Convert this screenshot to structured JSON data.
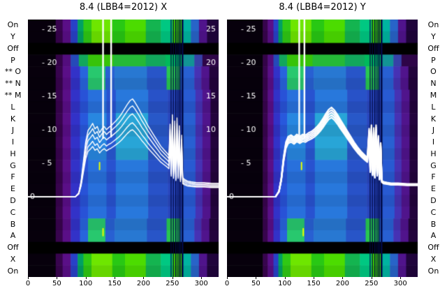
{
  "colors": {
    "trace": "#ffffff",
    "marker": "#e8ff00",
    "text": "#000000",
    "background": "#ffffff"
  },
  "labels": {
    "left": [
      {
        "text": "On"
      },
      {
        "text": "Y"
      },
      {
        "text": "Off"
      },
      {
        "text": "P"
      },
      {
        "text": "O",
        "flag": "**"
      },
      {
        "text": "N",
        "flag": "**"
      },
      {
        "text": "M",
        "flag": "**"
      },
      {
        "text": "L"
      },
      {
        "text": "K"
      },
      {
        "text": "J"
      },
      {
        "text": "I"
      },
      {
        "text": "H"
      },
      {
        "text": "G"
      },
      {
        "text": "F"
      },
      {
        "text": "E"
      },
      {
        "text": "D"
      },
      {
        "text": "C"
      },
      {
        "text": "B"
      },
      {
        "text": "A"
      },
      {
        "text": "Off"
      },
      {
        "text": "X"
      },
      {
        "text": "On"
      }
    ],
    "right": [
      "On",
      "Y",
      "Off",
      "P",
      "O",
      "N",
      "M",
      "L",
      "K",
      "J",
      "I",
      "H",
      "G",
      "F",
      "E",
      "D",
      "C",
      "B",
      "A",
      "Off",
      "X",
      "On"
    ]
  },
  "heatmap_palette": {
    "stripe_color": "#000a46",
    "row_shade_alpha": 0.07,
    "stripes": [
      {
        "x": 247,
        "w": 1.2
      },
      {
        "x": 251,
        "w": 1.2
      },
      {
        "x": 255,
        "w": 1.8
      },
      {
        "x": 259,
        "w": 1.2
      },
      {
        "x": 262,
        "w": 2.2
      },
      {
        "x": 266,
        "w": 3
      }
    ],
    "profiles": {
      "off": [
        [
          0,
          330,
          "#000000"
        ]
      ],
      "bright": [
        [
          0,
          48,
          "#07000c"
        ],
        [
          48,
          60,
          "#38044e"
        ],
        [
          60,
          74,
          "#5a0f87"
        ],
        [
          74,
          86,
          "#2841c8"
        ],
        [
          86,
          96,
          "#00a064"
        ],
        [
          96,
          110,
          "#30c814"
        ],
        [
          110,
          146,
          "#6ee600"
        ],
        [
          146,
          168,
          "#28c814"
        ],
        [
          168,
          204,
          "#4cdc00"
        ],
        [
          204,
          230,
          "#14b450"
        ],
        [
          230,
          250,
          "#00c882"
        ],
        [
          250,
          266,
          "#3cd200"
        ],
        [
          266,
          282,
          "#00b4a0"
        ],
        [
          282,
          296,
          "#2864c8"
        ],
        [
          296,
          310,
          "#50148c"
        ],
        [
          310,
          330,
          "#20043c"
        ]
      ],
      "pgreen": [
        [
          0,
          48,
          "#07000c"
        ],
        [
          48,
          60,
          "#38044e"
        ],
        [
          60,
          74,
          "#5a0f87"
        ],
        [
          74,
          88,
          "#2850c8"
        ],
        [
          88,
          104,
          "#14b464"
        ],
        [
          104,
          148,
          "#3cd20a"
        ],
        [
          148,
          204,
          "#28c83c"
        ],
        [
          204,
          238,
          "#14b464"
        ],
        [
          238,
          266,
          "#00c864"
        ],
        [
          266,
          288,
          "#14a0a0"
        ],
        [
          288,
          302,
          "#3c46b4"
        ],
        [
          302,
          330,
          "#32064e"
        ]
      ],
      "green": [
        [
          0,
          48,
          "#07000c"
        ],
        [
          48,
          60,
          "#38044e"
        ],
        [
          60,
          74,
          "#5a0f87"
        ],
        [
          74,
          90,
          "#3232c8"
        ],
        [
          90,
          104,
          "#2864dc"
        ],
        [
          104,
          134,
          "#28c86e"
        ],
        [
          134,
          150,
          "#2860d2"
        ],
        [
          150,
          206,
          "#2878d2"
        ],
        [
          206,
          240,
          "#2855c8"
        ],
        [
          240,
          264,
          "#28c850"
        ],
        [
          264,
          288,
          "#2860d2"
        ],
        [
          288,
          300,
          "#4632b4"
        ],
        [
          300,
          314,
          "#50148c"
        ],
        [
          314,
          330,
          "#23043c"
        ]
      ],
      "midc": [
        [
          0,
          48,
          "#07000c"
        ],
        [
          48,
          60,
          "#38044e"
        ],
        [
          60,
          74,
          "#5a0f87"
        ],
        [
          74,
          90,
          "#3232c8"
        ],
        [
          90,
          104,
          "#2858dc"
        ],
        [
          104,
          136,
          "#2887e0"
        ],
        [
          136,
          152,
          "#2858d2"
        ],
        [
          152,
          208,
          "#28a5d7"
        ],
        [
          208,
          242,
          "#2858c8"
        ],
        [
          242,
          266,
          "#2846be"
        ],
        [
          266,
          290,
          "#2860d2"
        ],
        [
          290,
          302,
          "#4632b4"
        ],
        [
          302,
          316,
          "#50148c"
        ],
        [
          316,
          330,
          "#23043c"
        ]
      ],
      "mid": [
        [
          0,
          48,
          "#07000c"
        ],
        [
          48,
          60,
          "#38044e"
        ],
        [
          60,
          74,
          "#5a0f87"
        ],
        [
          74,
          90,
          "#3232c8"
        ],
        [
          90,
          104,
          "#2852d7"
        ],
        [
          104,
          136,
          "#2870dc"
        ],
        [
          136,
          152,
          "#2852d0"
        ],
        [
          152,
          208,
          "#2878dc"
        ],
        [
          208,
          242,
          "#2852c8"
        ],
        [
          242,
          266,
          "#2846be"
        ],
        [
          266,
          290,
          "#285ad2"
        ],
        [
          290,
          302,
          "#4632b4"
        ],
        [
          302,
          316,
          "#50148c"
        ],
        [
          316,
          330,
          "#23043c"
        ]
      ]
    }
  },
  "chart_data": [
    {
      "type": "heatmap",
      "title": "8.4 (LBB4=2012) X",
      "x_range": [
        0,
        330
      ],
      "x_ticks": [
        0,
        50,
        100,
        150,
        200,
        250,
        300
      ],
      "value_range": [
        -12,
        26.5
      ],
      "rows": [
        "On",
        "Y",
        "Off",
        "P",
        "O",
        "N",
        "M",
        "L",
        "K",
        "J",
        "I",
        "H",
        "G",
        "F",
        "E",
        "D",
        "C",
        "B",
        "A",
        "Off",
        "X",
        "On"
      ],
      "row_profiles": [
        "bright",
        "bright",
        "off",
        "pgreen",
        "green",
        "green",
        "mid",
        "mid",
        "midc",
        "midc",
        "midc",
        "midc",
        "mid",
        "mid",
        "mid",
        "mid",
        "mid",
        "green",
        "green",
        "off",
        "bright",
        "bright"
      ],
      "dark_extend": 0,
      "y_ticks_left": [
        {
          "v": 25,
          "label": "- 25"
        },
        {
          "v": 20,
          "label": "- 20"
        },
        {
          "v": 15,
          "label": "- 15"
        },
        {
          "v": 10,
          "label": "- 10"
        },
        {
          "v": 5,
          "label": "- 5"
        },
        {
          "v": 0,
          "label": "0"
        }
      ],
      "y_ticks_right": [
        {
          "v": 25,
          "label": "25"
        },
        {
          "v": 20,
          "label": "20"
        },
        {
          "v": 15,
          "label": "15"
        },
        {
          "v": 10,
          "label": "10"
        }
      ],
      "trace": [
        [
          0,
          0
        ],
        [
          82,
          0
        ],
        [
          88,
          0.5
        ],
        [
          92,
          2
        ],
        [
          96,
          4.5
        ],
        [
          100,
          7
        ],
        [
          104,
          8.4
        ],
        [
          108,
          8.8
        ],
        [
          112,
          9.3
        ],
        [
          116,
          8.6
        ],
        [
          120,
          8.9
        ],
        [
          124,
          8.1
        ],
        [
          128,
          8.6
        ],
        [
          132,
          8.9
        ],
        [
          136,
          8.5
        ],
        [
          140,
          8.8
        ],
        [
          144,
          9
        ],
        [
          148,
          9.3
        ],
        [
          152,
          9.6
        ],
        [
          157,
          10
        ],
        [
          162,
          10.5
        ],
        [
          167,
          11.1
        ],
        [
          172,
          11.7
        ],
        [
          177,
          12.2
        ],
        [
          181,
          12.4
        ],
        [
          185,
          12
        ],
        [
          189,
          11.5
        ],
        [
          193,
          11
        ],
        [
          197,
          10.4
        ],
        [
          202,
          9.8
        ],
        [
          207,
          9.1
        ],
        [
          212,
          8.5
        ],
        [
          218,
          7.8
        ],
        [
          224,
          7.1
        ],
        [
          230,
          6.4
        ],
        [
          236,
          5.9
        ],
        [
          241,
          5.5
        ],
        [
          244,
          5.2
        ],
        [
          246,
          9.2
        ],
        [
          248,
          3.8
        ],
        [
          250,
          10.4
        ],
        [
          252,
          3.4
        ],
        [
          254,
          9.6
        ],
        [
          256,
          3
        ],
        [
          258,
          10
        ],
        [
          260,
          3.4
        ],
        [
          262,
          9
        ],
        [
          264,
          2.8
        ],
        [
          266,
          7.8
        ],
        [
          268,
          2.4
        ],
        [
          271,
          2.2
        ],
        [
          276,
          2
        ],
        [
          282,
          1.9
        ],
        [
          292,
          1.8
        ],
        [
          305,
          1.8
        ],
        [
          318,
          1.7
        ],
        [
          330,
          1.7
        ]
      ],
      "trace_offsets": [
        -1.6,
        -0.9,
        0,
        0.8,
        1.5
      ],
      "spread_factor": 0.12,
      "trace_width": 1.4,
      "spikes": [
        130,
        144
      ],
      "markers": [
        {
          "x": 124,
          "v": 4.6
        },
        {
          "x": 130,
          "v": -5.3
        }
      ]
    },
    {
      "type": "heatmap",
      "title": "8.4 (LBB4=2012) Y",
      "x_range": [
        0,
        330
      ],
      "x_ticks": [
        0,
        50,
        100,
        150,
        200,
        250,
        300
      ],
      "value_range": [
        -12,
        26.5
      ],
      "rows": [
        "On",
        "Y",
        "Off",
        "P",
        "O",
        "N",
        "M",
        "L",
        "K",
        "J",
        "I",
        "H",
        "G",
        "F",
        "E",
        "D",
        "C",
        "B",
        "A",
        "Off",
        "X",
        "On"
      ],
      "row_profiles": [
        "bright",
        "bright",
        "off",
        "pgreen",
        "green",
        "green",
        "mid",
        "mid",
        "midc",
        "midc",
        "midc",
        "midc",
        "mid",
        "mid",
        "mid",
        "mid",
        "mid",
        "green",
        "green",
        "off",
        "bright",
        "bright"
      ],
      "dark_extend": 14,
      "y_ticks_left": [
        {
          "v": 25,
          "label": "- 25"
        },
        {
          "v": 20,
          "label": "- 20"
        },
        {
          "v": 15,
          "label": "- 15"
        },
        {
          "v": 10,
          "label": "- 10"
        },
        {
          "v": 5,
          "label": "- 5"
        },
        {
          "v": 0,
          "label": "0"
        }
      ],
      "y_ticks_right": [],
      "trace": [
        [
          0,
          0
        ],
        [
          84,
          0
        ],
        [
          90,
          0.8
        ],
        [
          94,
          2.6
        ],
        [
          98,
          5.6
        ],
        [
          102,
          7.7
        ],
        [
          106,
          8.5
        ],
        [
          111,
          8.7
        ],
        [
          116,
          8.4
        ],
        [
          121,
          8.8
        ],
        [
          126,
          8.5
        ],
        [
          131,
          8.8
        ],
        [
          136,
          8.7
        ],
        [
          141,
          9
        ],
        [
          146,
          9.2
        ],
        [
          151,
          9.5
        ],
        [
          156,
          9.9
        ],
        [
          161,
          10.4
        ],
        [
          166,
          11
        ],
        [
          171,
          11.7
        ],
        [
          176,
          12.3
        ],
        [
          181,
          12.6
        ],
        [
          186,
          12.2
        ],
        [
          191,
          11.6
        ],
        [
          196,
          10.9
        ],
        [
          202,
          10.1
        ],
        [
          208,
          9.3
        ],
        [
          214,
          8.5
        ],
        [
          220,
          7.7
        ],
        [
          226,
          7
        ],
        [
          232,
          6.4
        ],
        [
          238,
          5.9
        ],
        [
          243,
          5.5
        ],
        [
          246,
          9.6
        ],
        [
          248,
          3.9
        ],
        [
          250,
          10.1
        ],
        [
          252,
          3.4
        ],
        [
          254,
          9.7
        ],
        [
          256,
          3
        ],
        [
          258,
          10.1
        ],
        [
          260,
          3.3
        ],
        [
          262,
          8.6
        ],
        [
          264,
          2.7
        ],
        [
          266,
          7.6
        ],
        [
          268,
          2.3
        ],
        [
          271,
          2.1
        ],
        [
          277,
          2
        ],
        [
          284,
          1.9
        ],
        [
          296,
          1.9
        ],
        [
          312,
          1.8
        ],
        [
          330,
          1.8
        ]
      ],
      "trace_offsets": [
        -0.6,
        -0.3,
        0,
        0.3,
        0.6
      ],
      "spread_factor": 0.1,
      "trace_width": 2.2,
      "spikes": [
        125,
        134
      ],
      "markers": [
        {
          "x": 129,
          "v": 4.6
        },
        {
          "x": 132,
          "v": -5.3
        }
      ]
    }
  ]
}
